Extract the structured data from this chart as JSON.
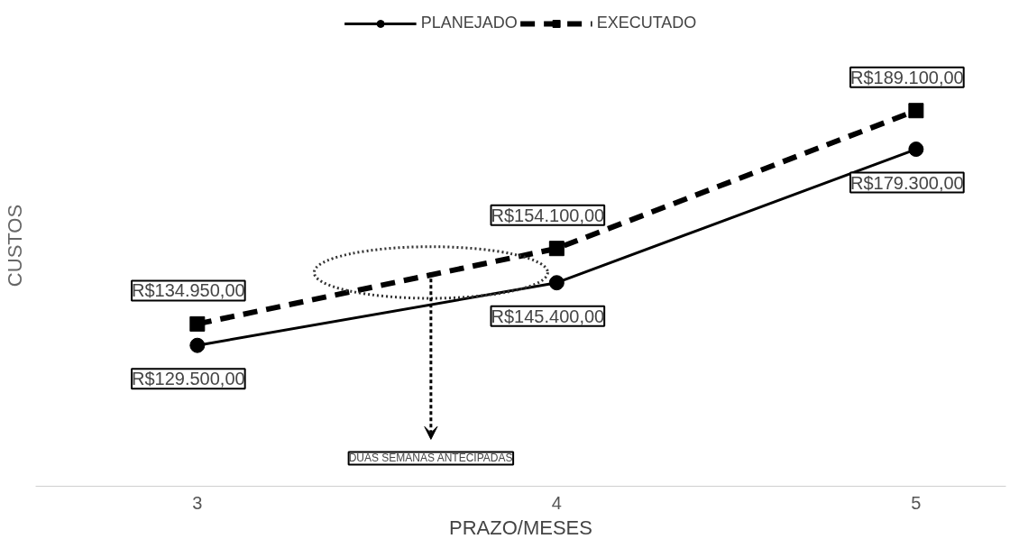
{
  "chart_data": {
    "type": "line",
    "xlabel": "PRAZO/MESES",
    "ylabel": "CUSTOS",
    "x": [
      3,
      4,
      5
    ],
    "xlim": [
      2.55,
      5.25
    ],
    "xticks": [
      3,
      4,
      5
    ],
    "legend": "top",
    "grid": false,
    "series": [
      {
        "name": "PLANEJADO",
        "color": "#000000",
        "values": [
          129500,
          145400,
          179300
        ],
        "marker": "circle",
        "line_style": "solid",
        "value_labels": [
          "R$129.500,00",
          "R$145.400,00",
          "R$179.300,00"
        ]
      },
      {
        "name": "EXECUTADO",
        "color": "#000000",
        "values": [
          134950,
          154100,
          189100
        ],
        "marker": "square",
        "line_style": "dashed",
        "value_labels": [
          "R$134.950,00",
          "R$154.100,00",
          "R$189.100,00"
        ]
      }
    ],
    "annotations": [
      {
        "text": "DUAS SEMANAS ANTECIPADAS",
        "x": 3.65,
        "y": 148000
      }
    ]
  }
}
